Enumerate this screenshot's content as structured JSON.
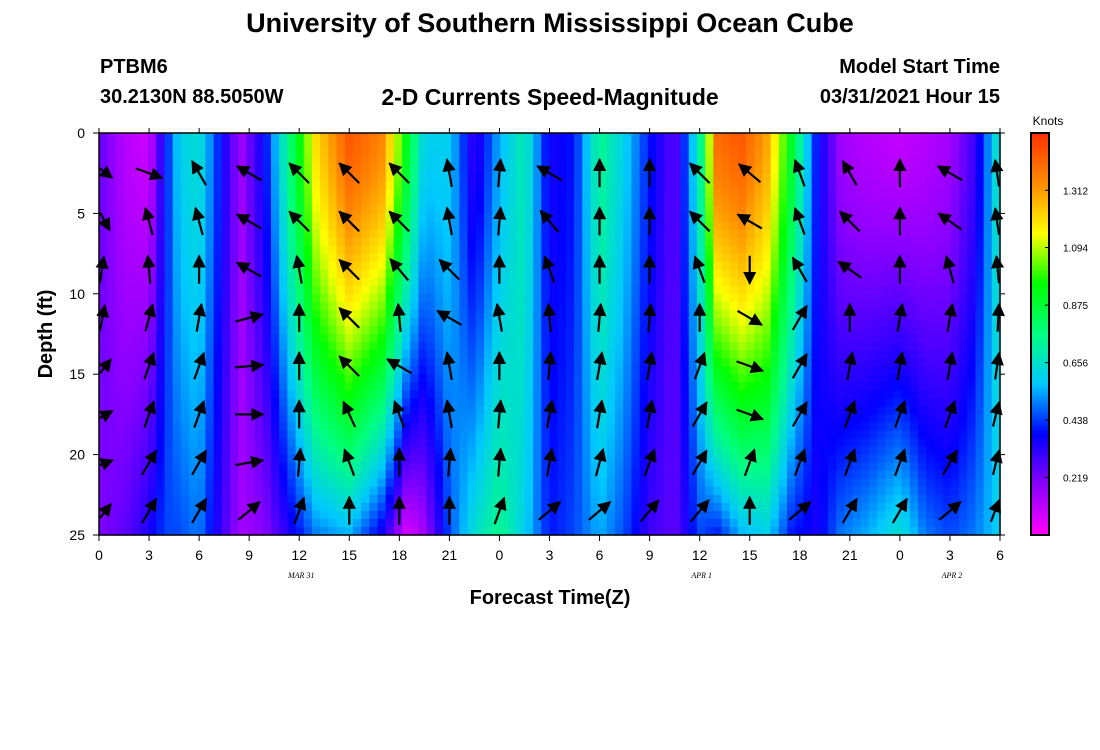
{
  "header": {
    "title": "University of Southern Mississippi Ocean Cube",
    "station_id": "PTBM6",
    "station_coords": "30.2130N  88.5050W",
    "subtitle": "2-D Currents Speed-Magnitude",
    "model_start_label": "Model Start Time",
    "model_start_value": "03/31/2021 Hour 15"
  },
  "footer": {
    "title": "University of Southern Mississippi Ocean Cube"
  },
  "colors": {
    "scale": [
      "#ff00ff",
      "#8a00ff",
      "#0000ff",
      "#00c8ff",
      "#00ff80",
      "#00ff00",
      "#ffff00",
      "#ff8c00",
      "#ff3000"
    ],
    "vector": "#000000",
    "frame": "#000000"
  },
  "chart_data": {
    "type": "heatmap",
    "title": "2-D Currents Speed-Magnitude",
    "xlabel": "Forecast Time(Z)",
    "ylabel": "Depth (ft)",
    "x_range": [
      0,
      54
    ],
    "y_range": [
      0,
      25
    ],
    "y_inverted": true,
    "x_tick_values": [
      0,
      3,
      6,
      9,
      12,
      15,
      18,
      21,
      24,
      27,
      30,
      33,
      36,
      39,
      42,
      45,
      48,
      51,
      54
    ],
    "x_tick_labels": [
      "0",
      "3",
      "6",
      "9",
      "12",
      "15",
      "18",
      "21",
      "0",
      "3",
      "6",
      "9",
      "12",
      "15",
      "18",
      "21",
      "0",
      "3",
      "6"
    ],
    "y_tick_values": [
      0,
      5,
      10,
      15,
      20,
      25
    ],
    "y_tick_labels": [
      "0",
      "5",
      "10",
      "15",
      "20",
      "25"
    ],
    "date_labels": [
      {
        "x": 12,
        "text": "MAR 31"
      },
      {
        "x": 36,
        "text": "APR 1"
      },
      {
        "x": 51,
        "text": "APR 2"
      }
    ],
    "colorbar": {
      "unit": "Knots",
      "min": 0,
      "max": 1.53,
      "ticks": [
        0.219,
        0.438,
        0.656,
        0.875,
        1.094,
        1.312
      ],
      "tick_labels": [
        "0.219",
        "0.438",
        "0.656",
        "0.875",
        "1.094",
        "1.312"
      ]
    },
    "speed_profile": {
      "description_hours": [
        0,
        1.5,
        3,
        4,
        4.8,
        6,
        7,
        8.5,
        10,
        11.5,
        13,
        15,
        17,
        18.5,
        19.5,
        21,
        22.5,
        24,
        25.5,
        27,
        28.5,
        30,
        31.5,
        33,
        34.5,
        36,
        37,
        38.5,
        40,
        41.5,
        43,
        44.5,
        46,
        48,
        49.5,
        51,
        52.5,
        54
      ],
      "surface_knots": [
        0.25,
        0.12,
        0.08,
        0.4,
        0.6,
        0.65,
        0.45,
        0.15,
        0.4,
        0.8,
        1.2,
        1.45,
        1.35,
        0.9,
        0.6,
        0.6,
        0.3,
        0.55,
        0.7,
        0.35,
        0.4,
        0.75,
        0.6,
        0.4,
        0.25,
        0.7,
        1.4,
        1.45,
        1.3,
        0.9,
        0.4,
        0.15,
        0.12,
        0.1,
        0.12,
        0.15,
        0.3,
        0.7
      ],
      "bottom_knots": [
        0.2,
        0.25,
        0.35,
        0.45,
        0.45,
        0.5,
        0.35,
        0.15,
        0.2,
        0.35,
        0.5,
        0.55,
        0.35,
        0.05,
        0.15,
        0.45,
        0.65,
        0.75,
        0.6,
        0.4,
        0.45,
        0.55,
        0.45,
        0.3,
        0.25,
        0.45,
        0.4,
        0.55,
        0.6,
        0.4,
        0.35,
        0.5,
        0.55,
        0.65,
        0.5,
        0.45,
        0.5,
        0.6
      ]
    },
    "vectors": {
      "x_hours": [
        0,
        3,
        6,
        9,
        12,
        15,
        18,
        21,
        24,
        27,
        30,
        33,
        36,
        39,
        42,
        45,
        48,
        51,
        54
      ],
      "depths_ft": [
        2.5,
        5.5,
        8.5,
        11.5,
        14.5,
        17.5,
        20.5,
        23.5
      ],
      "direction_deg_cw_from_east": [
        [
          20,
          20,
          240,
          210,
          225,
          225,
          225,
          260,
          275,
          210,
          270,
          270,
          225,
          220,
          250,
          240,
          270,
          210,
          250
        ],
        [
          40,
          255,
          255,
          210,
          225,
          225,
          225,
          260,
          275,
          230,
          270,
          270,
          225,
          210,
          250,
          225,
          270,
          215,
          250
        ],
        [
          290,
          265,
          270,
          210,
          260,
          225,
          230,
          225,
          270,
          250,
          270,
          270,
          250,
          90,
          240,
          215,
          270,
          255,
          255
        ],
        [
          295,
          285,
          280,
          345,
          270,
          225,
          265,
          210,
          260,
          265,
          275,
          275,
          270,
          30,
          300,
          270,
          280,
          280,
          280
        ],
        [
          330,
          290,
          290,
          355,
          270,
          225,
          210,
          260,
          270,
          275,
          280,
          280,
          290,
          20,
          300,
          280,
          280,
          280,
          290
        ],
        [
          345,
          290,
          290,
          0,
          270,
          245,
          250,
          260,
          275,
          280,
          280,
          280,
          300,
          20,
          300,
          290,
          290,
          290,
          300
        ],
        [
          350,
          300,
          300,
          350,
          275,
          250,
          270,
          275,
          275,
          280,
          285,
          290,
          300,
          290,
          290,
          290,
          290,
          300,
          300
        ],
        [
          330,
          300,
          300,
          320,
          290,
          270,
          270,
          270,
          290,
          320,
          320,
          310,
          310,
          270,
          320,
          300,
          300,
          320,
          310
        ]
      ]
    }
  }
}
